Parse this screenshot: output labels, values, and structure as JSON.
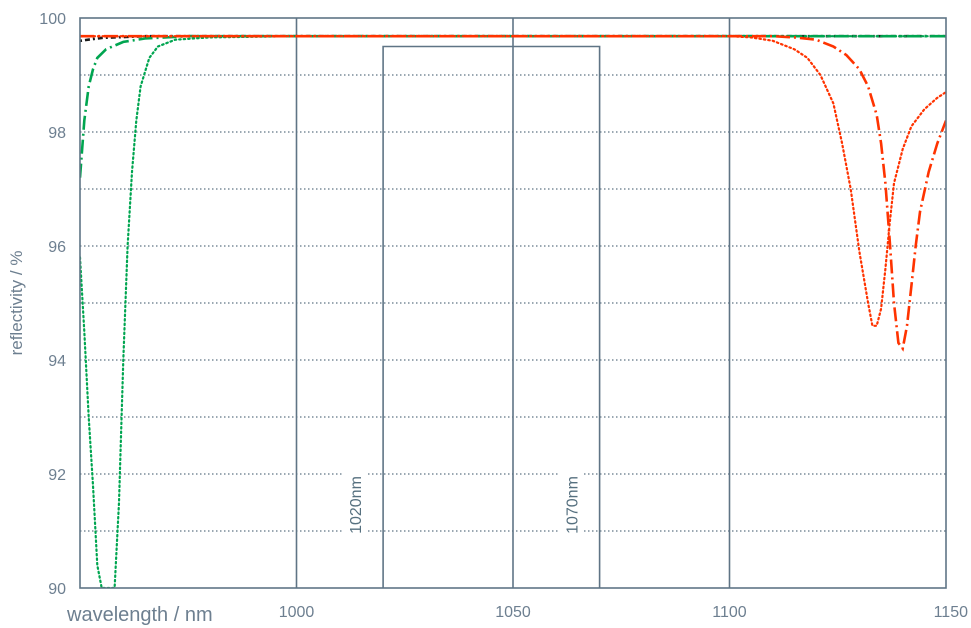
{
  "chart_data": {
    "type": "line",
    "title": "",
    "xlabel": "wavelength / nm",
    "ylabel": "reflectivity / %",
    "xlim": [
      950,
      1150
    ],
    "ylim": [
      90,
      100
    ],
    "x_ticks": [
      1000,
      1050,
      1100,
      1150
    ],
    "y_ticks": [
      90,
      92,
      94,
      96,
      98,
      100
    ],
    "grid": {
      "vertical_solid_at": [
        1000,
        1050,
        1100
      ],
      "horizontal_dotted_every": 1
    },
    "window": {
      "from": 1020,
      "to": 1070,
      "top": 99.5
    },
    "annotations": [
      {
        "text": "1020nm",
        "x": 1020
      },
      {
        "text": "1070nm",
        "x": 1070
      }
    ],
    "series": [
      {
        "color": "#1a1a1a",
        "style": "dot-dash",
        "points": [
          [
            950,
            99.6
          ],
          [
            955,
            99.65
          ],
          [
            965,
            99.68
          ],
          [
            1150,
            99.68
          ]
        ]
      },
      {
        "color": "#00a550",
        "style": "dotted",
        "points": [
          [
            950,
            95.8
          ],
          [
            951,
            94.5
          ],
          [
            952,
            93
          ],
          [
            953,
            91.8
          ],
          [
            954,
            90.4
          ],
          [
            955,
            90.0
          ],
          [
            956,
            90.0
          ],
          [
            957,
            90.0
          ],
          [
            958,
            90.0
          ],
          [
            959,
            91.5
          ],
          [
            960,
            94
          ],
          [
            961,
            96
          ],
          [
            962,
            97.3
          ],
          [
            963,
            98.2
          ],
          [
            964,
            98.8
          ],
          [
            966,
            99.3
          ],
          [
            968,
            99.5
          ],
          [
            972,
            99.62
          ],
          [
            980,
            99.66
          ],
          [
            1000,
            99.68
          ],
          [
            1150,
            99.68
          ]
        ]
      },
      {
        "color": "#00a550",
        "style": "long-dash-dot",
        "points": [
          [
            950,
            97.2
          ],
          [
            951,
            98.2
          ],
          [
            952,
            98.8
          ],
          [
            953,
            99.1
          ],
          [
            954,
            99.3
          ],
          [
            956,
            99.45
          ],
          [
            960,
            99.58
          ],
          [
            965,
            99.64
          ],
          [
            975,
            99.68
          ],
          [
            1150,
            99.68
          ]
        ]
      },
      {
        "color": "#ff3300",
        "style": "dotted",
        "points": [
          [
            950,
            99.68
          ],
          [
            1100,
            99.68
          ],
          [
            1105,
            99.66
          ],
          [
            1110,
            99.6
          ],
          [
            1115,
            99.45
          ],
          [
            1118,
            99.3
          ],
          [
            1121,
            99.0
          ],
          [
            1124,
            98.5
          ],
          [
            1126,
            97.8
          ],
          [
            1128,
            97.0
          ],
          [
            1130,
            95.9
          ],
          [
            1132,
            95.0
          ],
          [
            1133,
            94.6
          ],
          [
            1134,
            94.6
          ],
          [
            1135,
            94.9
          ],
          [
            1136,
            95.6
          ],
          [
            1137,
            96.4
          ],
          [
            1138,
            97.1
          ],
          [
            1140,
            97.7
          ],
          [
            1142,
            98.1
          ],
          [
            1145,
            98.4
          ],
          [
            1148,
            98.6
          ],
          [
            1150,
            98.7
          ]
        ]
      },
      {
        "color": "#ff3300",
        "style": "long-dash-dot",
        "points": [
          [
            950,
            99.68
          ],
          [
            1110,
            99.68
          ],
          [
            1115,
            99.66
          ],
          [
            1120,
            99.62
          ],
          [
            1124,
            99.5
          ],
          [
            1127,
            99.35
          ],
          [
            1130,
            99.1
          ],
          [
            1132,
            98.8
          ],
          [
            1134,
            98.3
          ],
          [
            1135,
            97.8
          ],
          [
            1136,
            97.1
          ],
          [
            1137,
            96.1
          ],
          [
            1138,
            95.0
          ],
          [
            1139,
            94.3
          ],
          [
            1140,
            94.2
          ],
          [
            1141,
            94.6
          ],
          [
            1142,
            95.3
          ],
          [
            1143,
            96.0
          ],
          [
            1144,
            96.6
          ],
          [
            1146,
            97.3
          ],
          [
            1148,
            97.8
          ],
          [
            1150,
            98.2
          ]
        ]
      }
    ]
  }
}
